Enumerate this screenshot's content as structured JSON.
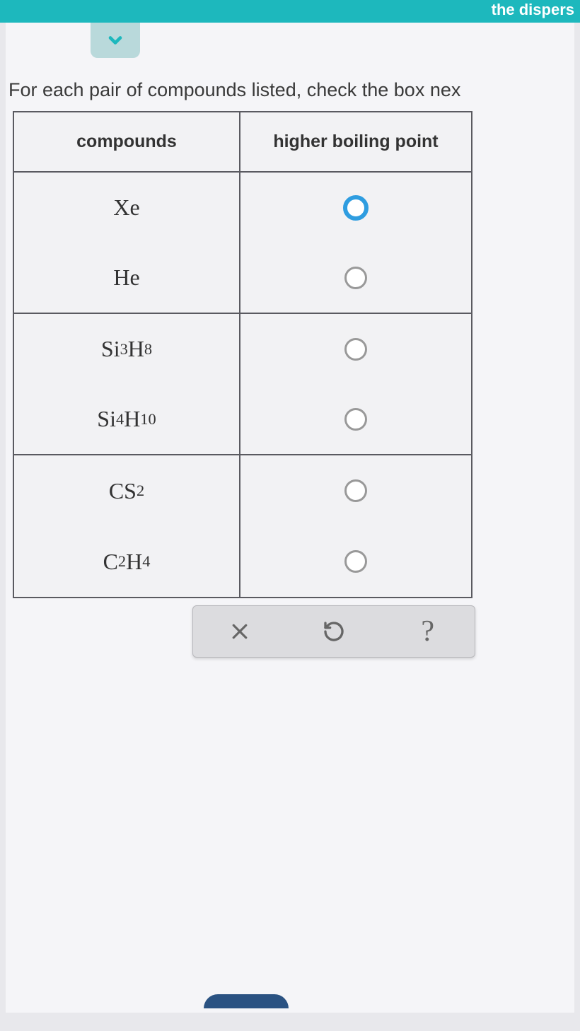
{
  "colors": {
    "topbar_bg": "#1db8bd",
    "content_bg": "#f5f5f8",
    "dropdown_bg": "#b9d9db",
    "border": "#5a5a60",
    "radio_selected": "#2f9de0",
    "radio_unselected": "#999999",
    "actionbar_bg": "#dcdcdf",
    "text": "#333333"
  },
  "topbar_text": "the dispers",
  "instruction": "For each pair of compounds listed, check the box nex",
  "table": {
    "headers": {
      "col1": "compounds",
      "col2": "higher boiling point"
    },
    "pairs": [
      {
        "a": {
          "formula_html": "Xe",
          "selected": true
        },
        "b": {
          "formula_html": "He",
          "selected": false
        }
      },
      {
        "a": {
          "formula_html": "Si<sub>3</sub>H<sub>8</sub>",
          "selected": false
        },
        "b": {
          "formula_html": "Si<sub>4</sub>H<sub>10</sub>",
          "selected": false
        }
      },
      {
        "a": {
          "formula_html": "CS<sub>2</sub>",
          "selected": false
        },
        "b": {
          "formula_html": "C<sub>2</sub>H<sub>4</sub>",
          "selected": false
        }
      }
    ]
  },
  "actions": {
    "clear": "×",
    "reset": "↺",
    "help": "?"
  }
}
